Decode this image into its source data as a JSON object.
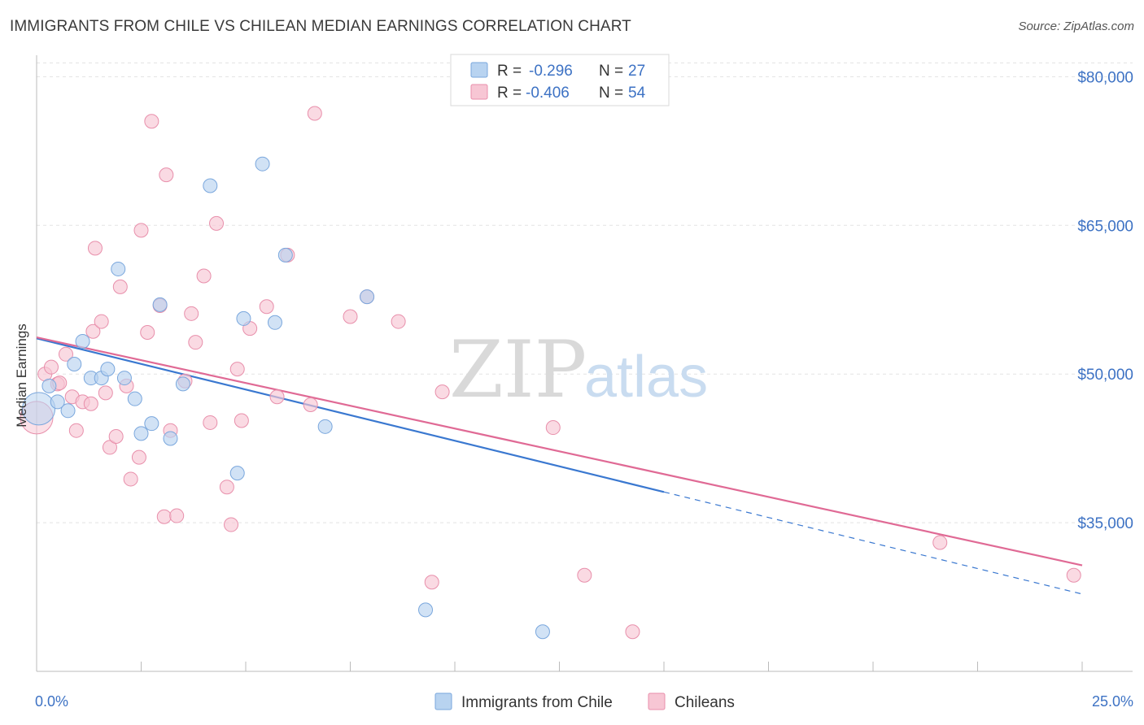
{
  "title": "IMMIGRANTS FROM CHILE VS CHILEAN MEDIAN EARNINGS CORRELATION CHART",
  "source": "Source: ZipAtlas.com",
  "watermark": {
    "zip": "ZIP",
    "atlas": "atlas"
  },
  "colors": {
    "blue_fill": "#b8d3f0",
    "blue_stroke": "#7aa7dd",
    "blue_line": "#3a78d0",
    "pink_fill": "#f7c6d4",
    "pink_stroke": "#e88fab",
    "pink_line": "#e06a95",
    "label_blue": "#3d72c4"
  },
  "chart_data": {
    "type": "scatter",
    "xlabel": "",
    "ylabel": "Median Earnings",
    "xlim": [
      0,
      25
    ],
    "ylim": [
      20000,
      82000
    ],
    "x_tick_labels": [
      "0.0%",
      "25.0%"
    ],
    "y_ticks": [
      35000,
      50000,
      65000,
      80000
    ],
    "y_tick_labels": [
      "$35,000",
      "$50,000",
      "$65,000",
      "$80,000"
    ],
    "grid": true,
    "legend": {
      "position": "top-center",
      "entries": [
        {
          "r_label": "R =",
          "r_value": "-0.296",
          "n_label": "N =",
          "n_value": "27"
        },
        {
          "r_label": "R =",
          "r_value": "-0.406",
          "n_label": "N =",
          "n_value": "54"
        }
      ]
    },
    "series": [
      {
        "name": "Immigrants from Chile",
        "color": "#b8d3f0",
        "points": [
          [
            0.05,
            46500
          ],
          [
            0.3,
            48800
          ],
          [
            0.5,
            47200
          ],
          [
            0.75,
            46300
          ],
          [
            0.9,
            51000
          ],
          [
            1.1,
            53300
          ],
          [
            1.3,
            49600
          ],
          [
            1.55,
            49600
          ],
          [
            1.7,
            50500
          ],
          [
            1.95,
            60600
          ],
          [
            2.1,
            49600
          ],
          [
            2.35,
            47500
          ],
          [
            2.5,
            44000
          ],
          [
            2.75,
            45000
          ],
          [
            2.95,
            57000
          ],
          [
            3.2,
            43500
          ],
          [
            3.5,
            49000
          ],
          [
            4.15,
            69000
          ],
          [
            4.8,
            40000
          ],
          [
            4.95,
            55600
          ],
          [
            5.4,
            71200
          ],
          [
            5.7,
            55200
          ],
          [
            5.95,
            62000
          ],
          [
            6.9,
            44700
          ],
          [
            7.9,
            57800
          ],
          [
            9.3,
            26200
          ],
          [
            12.1,
            24000
          ]
        ],
        "trend": {
          "x0": 0,
          "y0": 53600,
          "x1": 15,
          "y1": 38100,
          "dash_to_x": 25,
          "dash_to_y": 27800
        }
      },
      {
        "name": "Chileans",
        "color": "#f7c6d4",
        "points": [
          [
            0.0,
            45600
          ],
          [
            0.2,
            50000
          ],
          [
            0.35,
            50700
          ],
          [
            0.5,
            49000
          ],
          [
            0.55,
            49100
          ],
          [
            0.7,
            52000
          ],
          [
            0.85,
            47700
          ],
          [
            0.95,
            44300
          ],
          [
            1.1,
            47200
          ],
          [
            1.3,
            47000
          ],
          [
            1.35,
            54300
          ],
          [
            1.4,
            62700
          ],
          [
            1.55,
            55300
          ],
          [
            1.65,
            48100
          ],
          [
            1.75,
            42600
          ],
          [
            1.9,
            43700
          ],
          [
            2.0,
            58800
          ],
          [
            2.15,
            48800
          ],
          [
            2.25,
            39400
          ],
          [
            2.45,
            41600
          ],
          [
            2.5,
            64500
          ],
          [
            2.65,
            54200
          ],
          [
            2.75,
            75500
          ],
          [
            2.95,
            56900
          ],
          [
            3.05,
            35600
          ],
          [
            3.1,
            70100
          ],
          [
            3.2,
            44300
          ],
          [
            3.35,
            35700
          ],
          [
            3.55,
            49300
          ],
          [
            3.7,
            56100
          ],
          [
            3.8,
            53200
          ],
          [
            4.0,
            59900
          ],
          [
            4.15,
            45100
          ],
          [
            4.3,
            65200
          ],
          [
            4.55,
            38600
          ],
          [
            4.65,
            34800
          ],
          [
            4.8,
            50500
          ],
          [
            4.9,
            45300
          ],
          [
            5.1,
            54600
          ],
          [
            5.5,
            56800
          ],
          [
            5.75,
            47700
          ],
          [
            6.0,
            62000
          ],
          [
            6.55,
            46900
          ],
          [
            6.65,
            76300
          ],
          [
            7.5,
            55800
          ],
          [
            7.9,
            57800
          ],
          [
            8.65,
            55300
          ],
          [
            9.45,
            29000
          ],
          [
            9.7,
            48200
          ],
          [
            12.35,
            44600
          ],
          [
            13.1,
            29700
          ],
          [
            14.25,
            24000
          ],
          [
            21.6,
            33000
          ],
          [
            24.8,
            29700
          ]
        ],
        "trend": {
          "x0": 0,
          "y0": 53700,
          "x1": 25,
          "y1": 30700
        }
      }
    ]
  }
}
